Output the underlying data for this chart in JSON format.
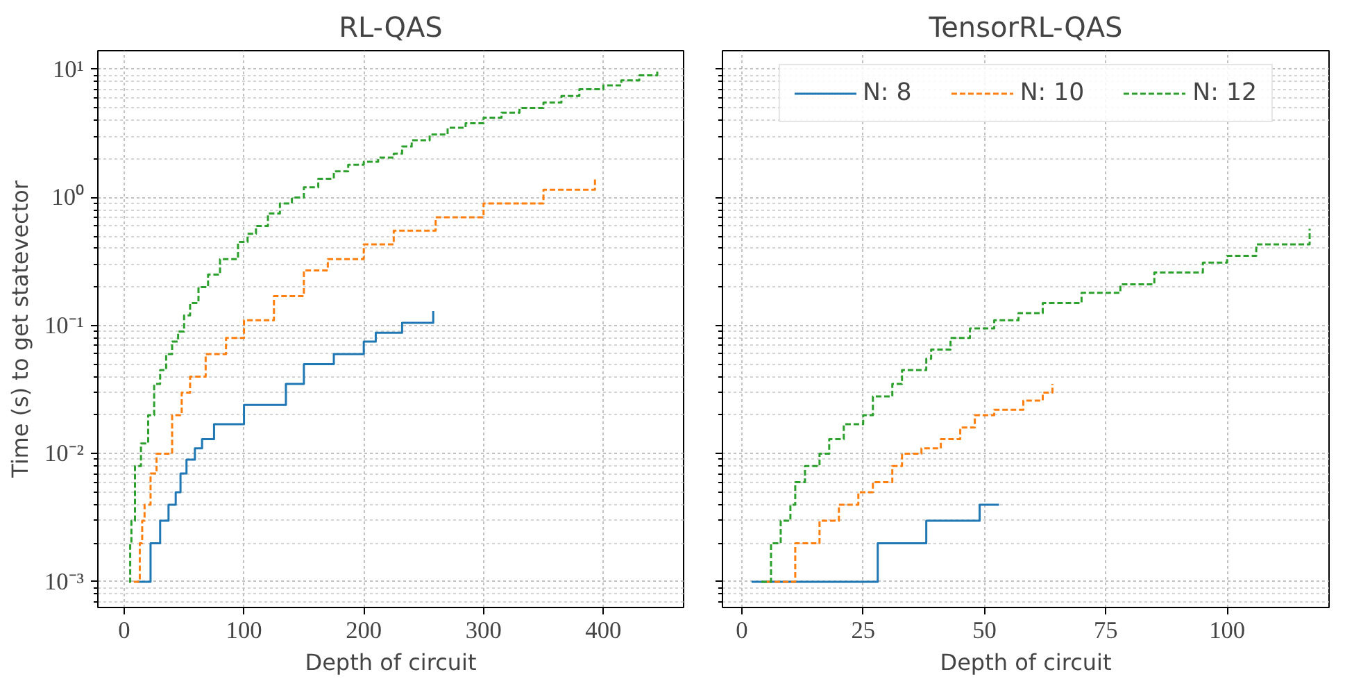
{
  "chart_data": [
    {
      "type": "step",
      "title": "RL-QAS",
      "xlabel": "Depth of circuit",
      "ylabel": "Time (s) to get statevector",
      "log": "y",
      "grid": true,
      "xlim": [
        -22,
        467
      ],
      "xticks": [
        0,
        100,
        200,
        300,
        400
      ],
      "ylim": [
        0.00063,
        14
      ],
      "yticks": [
        {
          "value": 0.001,
          "label": "10⁻³"
        },
        {
          "value": 0.01,
          "label": "10⁻²"
        },
        {
          "value": 0.1,
          "label": "10⁻¹"
        },
        {
          "value": 1,
          "label": "10⁰"
        },
        {
          "value": 10,
          "label": "10¹"
        }
      ],
      "series": [
        {
          "color": "#1f77b4",
          "line_style": "solid",
          "x": [
            11,
            22,
            30,
            37,
            43,
            47,
            52,
            59,
            65,
            75,
            100,
            135,
            150,
            175,
            200,
            210,
            232,
            258
          ],
          "values": [
            0.001,
            0.002,
            0.003,
            0.004,
            0.005,
            0.007,
            0.009,
            0.011,
            0.013,
            0.017,
            0.024,
            0.035,
            0.05,
            0.06,
            0.075,
            0.088,
            0.105,
            0.13
          ]
        },
        {
          "color": "#ff7f0e",
          "line_style": "dashed",
          "x": [
            8,
            13,
            15,
            17,
            22,
            27,
            40,
            48,
            55,
            68,
            85,
            100,
            125,
            150,
            170,
            200,
            225,
            260,
            300,
            350,
            393
          ],
          "values": [
            0.001,
            0.002,
            0.003,
            0.004,
            0.007,
            0.01,
            0.02,
            0.03,
            0.04,
            0.06,
            0.08,
            0.11,
            0.17,
            0.27,
            0.33,
            0.43,
            0.55,
            0.7,
            0.9,
            1.15,
            1.4
          ]
        },
        {
          "color": "#2ca02c",
          "line_style": "dashed",
          "x": [
            4,
            5,
            6,
            9,
            14,
            20,
            25,
            30,
            35,
            40,
            45,
            50,
            55,
            62,
            70,
            80,
            95,
            103,
            110,
            120,
            130,
            140,
            150,
            162,
            175,
            187,
            200,
            212,
            225,
            232,
            240,
            255,
            270,
            285,
            300,
            315,
            330,
            350,
            365,
            380,
            400,
            415,
            430,
            445
          ],
          "values": [
            0.001,
            0.002,
            0.003,
            0.008,
            0.012,
            0.02,
            0.035,
            0.045,
            0.06,
            0.075,
            0.09,
            0.12,
            0.15,
            0.2,
            0.25,
            0.33,
            0.45,
            0.52,
            0.6,
            0.75,
            0.9,
            1.0,
            1.2,
            1.4,
            1.6,
            1.8,
            1.9,
            2.05,
            2.2,
            2.5,
            2.8,
            3.1,
            3.5,
            3.8,
            4.2,
            4.6,
            5.0,
            5.5,
            6.2,
            7.0,
            7.5,
            8.2,
            9.0,
            10
          ]
        }
      ]
    },
    {
      "type": "step",
      "title": "TensorRL-QAS",
      "xlabel": "Depth of circuit",
      "log": "y",
      "grid": true,
      "legend": "top",
      "tick_labels": "x",
      "xlim": [
        -4,
        121
      ],
      "xticks": [
        0,
        25,
        50,
        75,
        100
      ],
      "ylim": [
        0.00063,
        14
      ],
      "yticks": [
        {
          "value": 0.001,
          "label": null
        },
        {
          "value": 0.01,
          "label": null
        },
        {
          "value": 0.1,
          "label": null
        },
        {
          "value": 1,
          "label": null
        },
        {
          "value": 10,
          "label": null
        }
      ],
      "series": [
        {
          "name": "N: 8",
          "color": "#1f77b4",
          "line_style": "solid",
          "x": [
            2,
            28,
            38,
            49,
            53
          ],
          "values": [
            0.001,
            0.002,
            0.003,
            0.004,
            0.004
          ]
        },
        {
          "name": "N: 10",
          "color": "#ff7f0e",
          "line_style": "dashed",
          "x": [
            5,
            11,
            16,
            20,
            24,
            27,
            31,
            33,
            37,
            41,
            45,
            48,
            52,
            58,
            62,
            64
          ],
          "values": [
            0.001,
            0.002,
            0.003,
            0.004,
            0.005,
            0.006,
            0.008,
            0.01,
            0.011,
            0.013,
            0.016,
            0.02,
            0.022,
            0.026,
            0.03,
            0.035
          ]
        },
        {
          "name": "N: 12",
          "color": "#2ca02c",
          "line_style": "dashed",
          "x": [
            4,
            6,
            8,
            10,
            11,
            13,
            16,
            18,
            21,
            25,
            27,
            31,
            33,
            38,
            39,
            43,
            47,
            52,
            57,
            62,
            70,
            78,
            85,
            95,
            100,
            106,
            117
          ],
          "values": [
            0.001,
            0.002,
            0.003,
            0.004,
            0.006,
            0.008,
            0.01,
            0.013,
            0.017,
            0.02,
            0.028,
            0.035,
            0.045,
            0.055,
            0.065,
            0.08,
            0.095,
            0.11,
            0.125,
            0.15,
            0.18,
            0.21,
            0.26,
            0.31,
            0.35,
            0.43,
            0.57
          ]
        }
      ]
    }
  ]
}
